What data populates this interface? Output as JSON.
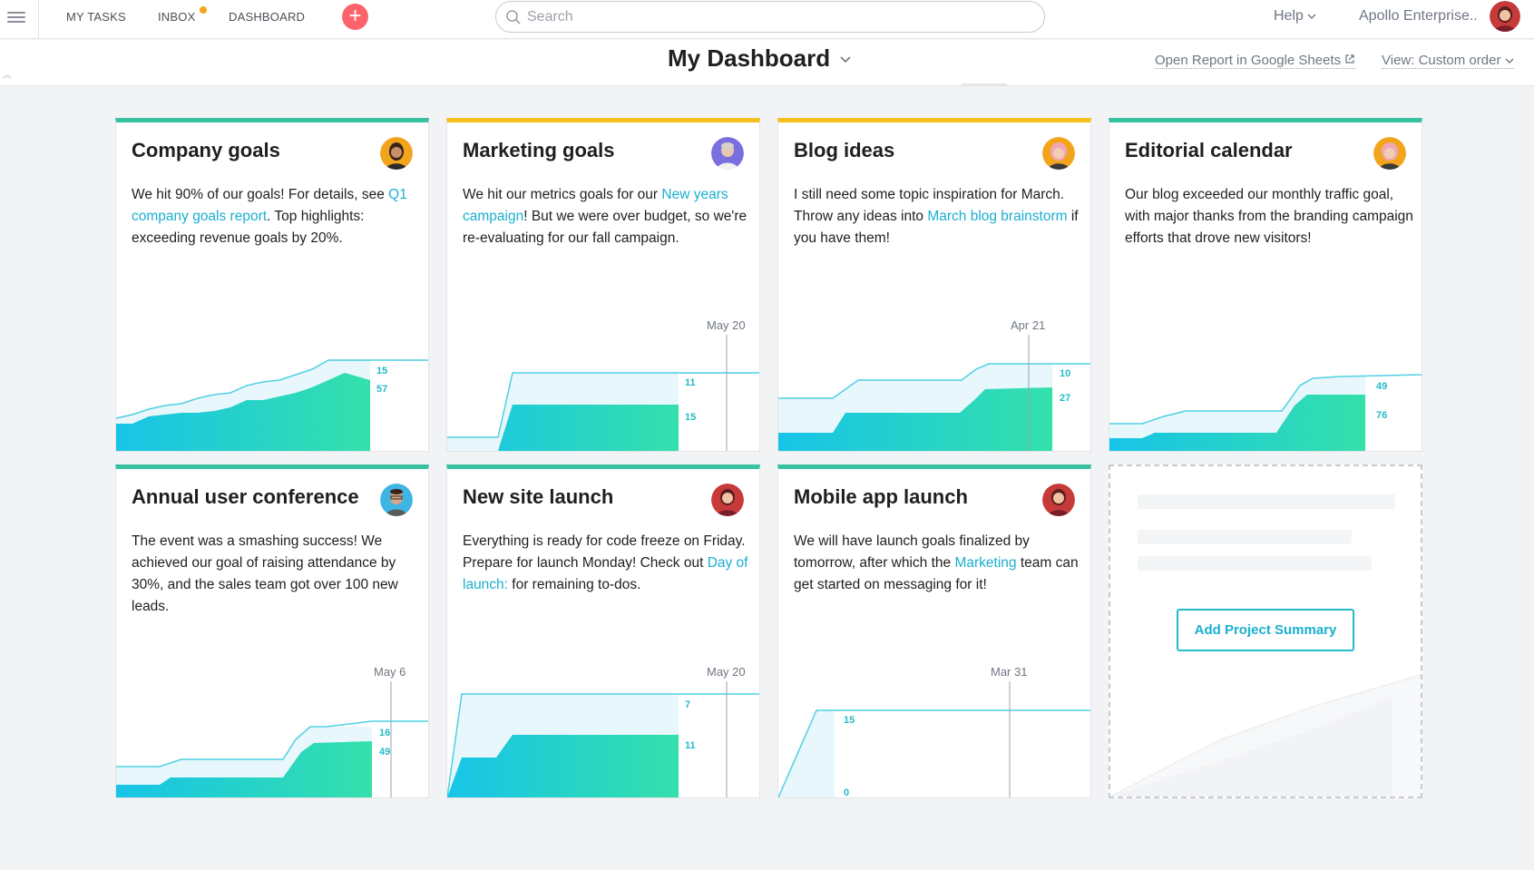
{
  "topbar": {
    "nav": [
      "MY TASKS",
      "INBOX",
      "DASHBOARD"
    ],
    "search_placeholder": "Search",
    "help_label": "Help",
    "org_name": "Apollo Enterprise.."
  },
  "header": {
    "title": "My Dashboard",
    "report_link": "Open Report in Google Sheets",
    "view_label": "View: Custom order"
  },
  "colors": {
    "accent": "#23bcc9",
    "green_band": "#36c2a1",
    "yellow_band": "#f4be1c",
    "link": "#1aafd0",
    "add_button": "#fc636b"
  },
  "cards": [
    {
      "title": "Company goals",
      "text": [
        "We hit 90% of our goals! For details, see ",
        "Q1 company goals report",
        ". Top highlights: exceeding revenue goals by 20%."
      ],
      "chart": {
        "remaining": "15",
        "completed": "57"
      }
    },
    {
      "title": "Marketing goals",
      "text": [
        "We hit our metrics goals for our ",
        "New years campaign",
        "! But we were over budget, so we're re-evaluating for our fall campaign."
      ],
      "chart": {
        "date": "May 20",
        "remaining": "11",
        "completed": "15"
      }
    },
    {
      "title": "Blog ideas",
      "text": [
        "I still need some topic inspiration for March. Throw any ideas into ",
        "March blog brainstorm",
        " if you have them!"
      ],
      "chart": {
        "date": "Apr 21",
        "remaining": "10",
        "completed": "27"
      }
    },
    {
      "title": "Editorial calendar",
      "text": [
        "Our blog exceeded our monthly traffic goal, with major thanks from the branding campaign efforts that drove new visitors!"
      ],
      "chart": {
        "remaining": "49",
        "completed": "76"
      }
    },
    {
      "title": "Annual user conference",
      "text": [
        "The event was a smashing success! We achieved our goal of raising attendance by 30%, and the sales team got over 100 new leads."
      ],
      "chart": {
        "date": "May 6",
        "remaining": "16",
        "completed": "49"
      }
    },
    {
      "title": "New site launch",
      "text": [
        "Everything is ready for code freeze on Friday. Prepare for launch Monday! Check out ",
        "Day of launch:",
        " for remaining to-dos."
      ],
      "chart": {
        "date": "May 20",
        "remaining": "7",
        "completed": "11"
      }
    },
    {
      "title": "Mobile app launch",
      "text": [
        "We will have launch goals finalized by tomorrow, after which the ",
        "Marketing",
        " team can get started on messaging for it!"
      ],
      "chart": {
        "date": "Mar 31",
        "remaining": "15",
        "completed": "0"
      }
    }
  ],
  "add_summary_label": "Add Project Summary"
}
